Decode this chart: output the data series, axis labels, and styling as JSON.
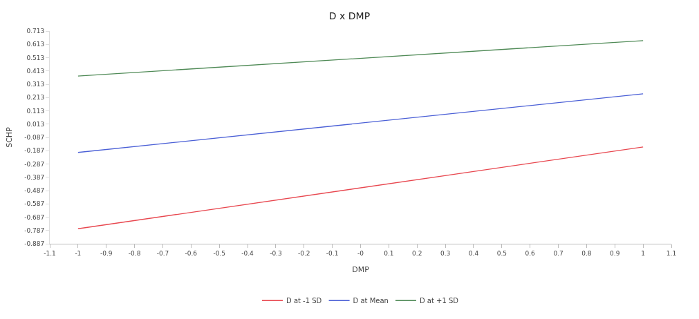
{
  "chart_data": {
    "type": "line",
    "title": "D x DMP",
    "xlabel": "DMP",
    "ylabel": "SCHP",
    "x": [
      -1,
      1
    ],
    "series": [
      {
        "name": "D at -1 SD",
        "color": "#e8474f",
        "values": [
          -0.774,
          -0.159
        ]
      },
      {
        "name": "D at Mean",
        "color": "#4a5fd6",
        "values": [
          -0.2,
          0.241
        ]
      },
      {
        "name": "D at +1 SD",
        "color": "#4f8a56",
        "values": [
          0.375,
          0.641
        ]
      }
    ],
    "xlim": [
      -1.1,
      1.1
    ],
    "xticks": [
      -1.1,
      -1,
      -0.9,
      -0.8,
      -0.7,
      -0.6,
      -0.5,
      -0.4,
      -0.3,
      -0.2,
      -0.1,
      {
        "value": 0,
        "label": "-0"
      },
      0.1,
      0.2,
      0.3,
      0.4,
      0.5,
      0.6,
      0.7,
      0.8,
      0.9,
      1,
      1.1
    ],
    "ylim": [
      -0.887,
      0.713
    ],
    "yticks": [
      -0.887,
      -0.787,
      -0.687,
      -0.587,
      -0.487,
      -0.387,
      -0.287,
      -0.187,
      -0.087,
      0.013,
      0.113,
      0.213,
      0.313,
      0.413,
      0.513,
      0.613,
      0.713
    ],
    "legend": "bottom",
    "line_style": "solid",
    "marker": "none"
  }
}
